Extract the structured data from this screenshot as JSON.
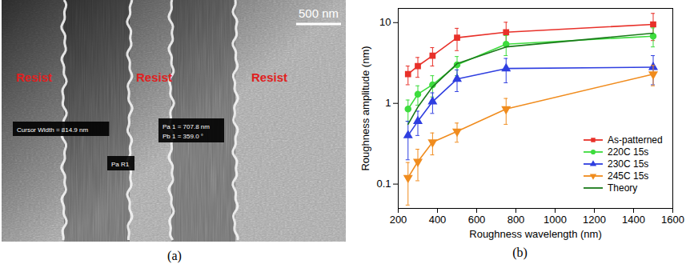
{
  "image_panel": {
    "panel_label": "(a)",
    "scale_bar": "500 nm",
    "region_labels": [
      "Resist",
      "Resist",
      "Resist"
    ],
    "annotations": [
      "Cursor Width = 814.9 nm",
      "Pa 1 = 707.8 nm",
      "Pb 1 = 359.0 °",
      "Pa R1"
    ]
  },
  "chart_data": {
    "panel_label": "(b)",
    "type": "line",
    "x_label": "Roughness wavelength (nm)",
    "y_label": "Roughness amplitude (nm)",
    "x": [
      250,
      300,
      375,
      500,
      750,
      1500
    ],
    "xlim": [
      200,
      1600
    ],
    "xticks": [
      200,
      400,
      600,
      800,
      1000,
      1200,
      1400,
      1600
    ],
    "ylim": [
      0.05,
      15
    ],
    "yticks": [
      0.1,
      1,
      10
    ],
    "log": "y",
    "legend": "lower right",
    "series": [
      {
        "name": "As-patterned",
        "color": "#e8312a",
        "marker": "square",
        "values": [
          2.3,
          2.9,
          3.9,
          6.5,
          7.6,
          9.5
        ],
        "errors": [
          0.6,
          0.8,
          1.0,
          2.0,
          2.5,
          3.5
        ]
      },
      {
        "name": "220C 15s",
        "color": "#3ddc3d",
        "marker": "circle",
        "values": [
          0.85,
          1.3,
          1.7,
          3.0,
          5.4,
          6.8
        ],
        "errors": [
          0.25,
          0.35,
          0.5,
          0.8,
          1.5,
          1.8
        ]
      },
      {
        "name": "230C 15s",
        "color": "#2f3fe0",
        "marker": "triangle-up",
        "values": [
          0.4,
          0.6,
          1.05,
          2.0,
          2.7,
          2.8
        ],
        "errors": [
          0.2,
          0.2,
          0.3,
          0.6,
          0.9,
          1.1
        ]
      },
      {
        "name": "245C 15s",
        "color": "#f08c1e",
        "marker": "triangle-down",
        "values": [
          0.12,
          0.19,
          0.33,
          0.45,
          0.85,
          2.3
        ],
        "errors": [
          0.065,
          0.08,
          0.1,
          0.12,
          0.3,
          0.65
        ]
      },
      {
        "name": "Theory",
        "color": "#1a7a1a",
        "marker": "none",
        "values": [
          0.55,
          0.9,
          1.6,
          3.1,
          5.0,
          7.4
        ]
      }
    ]
  }
}
